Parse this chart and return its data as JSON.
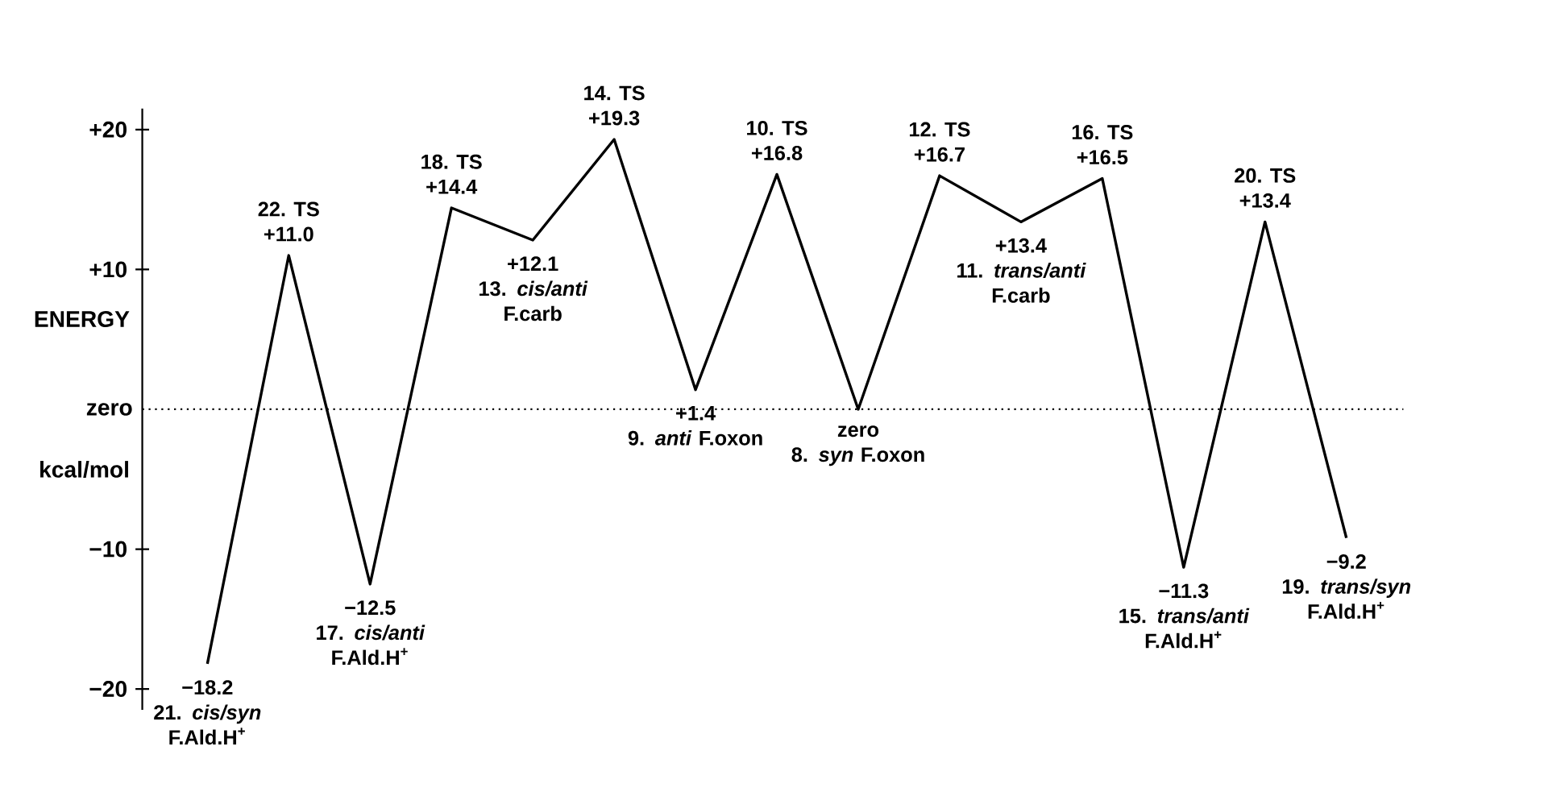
{
  "chart_data": {
    "type": "line",
    "ylabel": "ENERGY",
    "categories": [
      "21. *cis/syn* F.Ald.H$^{+}$",
      "22. TS",
      "17. *cis/anti* F.Ald.H$^{+}$",
      "18. TS",
      "13. *cis/anti* F.carb",
      "14. TS",
      "9. *anti* F.oxon",
      "10. TS",
      "8. *syn* F.oxon",
      "12. TS",
      "11. *trans/anti* F.carb",
      "16. TS",
      "15. *trans/anti* F.Ald.H$^{+}$",
      "20. TS",
      "19. *trans/syn* F.Ald.H$^{+}$"
    ],
    "values": [
      -18.2,
      11.0,
      -12.5,
      14.4,
      12.1,
      19.3,
      1.4,
      16.8,
      0,
      16.7,
      13.4,
      16.5,
      -11.3,
      13.4,
      -9.2
    ],
    "value_labels": [
      "−18.2",
      "+11.0",
      "−12.5",
      "+14.4",
      "+12.1",
      "+19.3",
      "+1.4",
      "+16.8",
      "zero",
      "+16.7",
      "+13.4",
      "+16.5",
      "−11.3",
      "+13.4",
      "−9.2"
    ],
    "color": "#000000",
    "line_style": "solid",
    "ylim": [
      -21.5,
      21.5
    ],
    "yticks": [
      {
        "value": 20,
        "label": "+20"
      },
      {
        "value": 10,
        "label": "+10"
      },
      {
        "value": -10,
        "label": "−10"
      },
      {
        "value": -20,
        "label": "−20"
      }
    ],
    "ref_lines": [
      {
        "axis": "y",
        "value": 0,
        "label": "zero",
        "line_style": "dotted",
        "color": "#000000"
      }
    ],
    "annotations": [
      "kcal/mol"
    ]
  }
}
